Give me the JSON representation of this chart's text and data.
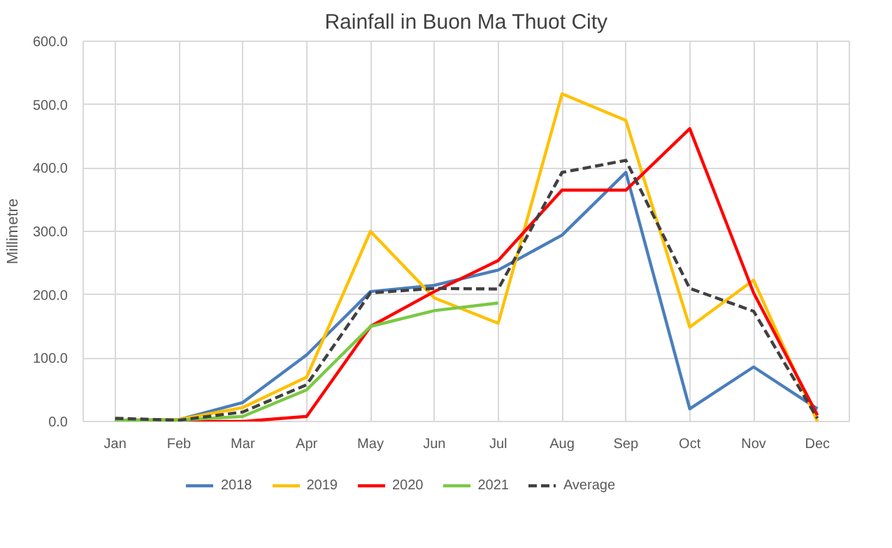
{
  "chart_data": {
    "type": "line",
    "title": "Rainfall in Buon Ma Thuot City",
    "ylabel": "Millimetre",
    "categories": [
      "Jan",
      "Feb",
      "Mar",
      "Apr",
      "May",
      "Jun",
      "Jul",
      "Aug",
      "Sep",
      "Oct",
      "Nov",
      "Dec"
    ],
    "ylim": [
      0,
      600
    ],
    "yticks": [
      {
        "value": 0,
        "label": "0.0"
      },
      {
        "value": 100,
        "label": "100.0"
      },
      {
        "value": 200,
        "label": "200.0"
      },
      {
        "value": 300,
        "label": "300.0"
      },
      {
        "value": 400,
        "label": "400.0"
      },
      {
        "value": 500,
        "label": "500.0"
      },
      {
        "value": 600,
        "label": "600.0"
      }
    ],
    "grid": true,
    "legend": "bottom",
    "series": [
      {
        "name": "2018",
        "color": "#4a7ebb",
        "values": [
          2,
          3,
          30,
          105,
          205,
          215,
          239,
          294,
          393,
          20,
          86,
          20
        ]
      },
      {
        "name": "2019",
        "color": "#ffc000",
        "values": [
          2,
          3,
          22,
          70,
          300,
          195,
          155,
          517,
          475,
          149,
          223,
          0
        ]
      },
      {
        "name": "2020",
        "color": "#ff0000",
        "values": [
          0,
          0,
          0,
          8,
          150,
          205,
          254,
          365,
          365,
          462,
          203,
          10
        ]
      },
      {
        "name": "2021",
        "color": "#7ac943",
        "values": [
          2,
          2,
          8,
          50,
          150,
          175,
          187,
          null,
          null,
          null,
          null,
          null
        ]
      },
      {
        "name": "Average",
        "color": "#404040",
        "values": [
          5,
          2,
          15,
          58,
          203,
          210,
          209,
          393,
          412,
          210,
          174,
          5
        ],
        "line_style": "dashed"
      }
    ]
  }
}
